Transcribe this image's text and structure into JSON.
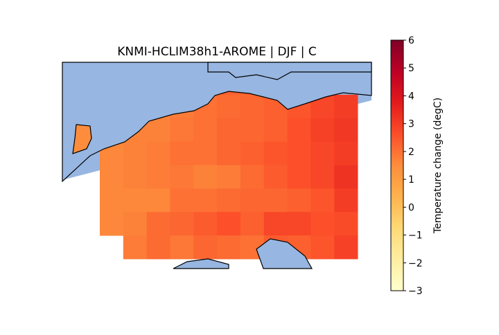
{
  "chart_data": {
    "type": "gridded-map",
    "title": "KNMI-HCLIM38h1-AROME | DJF | C",
    "colormap": "YlOrRd",
    "sea_color": "#97b6e1",
    "colorbar_label": "Temperature change (degC)",
    "clim": [
      -3,
      6
    ],
    "cticks": [
      {
        "value": -3,
        "label": "−3"
      },
      {
        "value": -2,
        "label": "−2"
      },
      {
        "value": -1,
        "label": "−1"
      },
      0,
      1,
      2,
      3,
      4,
      5,
      6
    ],
    "values": [
      [
        null,
        null,
        null,
        null,
        null,
        2.3,
        2.3,
        2.3,
        2.4,
        null,
        null
      ],
      [
        null,
        null,
        1.6,
        1.8,
        2.0,
        2.1,
        2.2,
        2.3,
        2.5,
        2.8,
        3.0
      ],
      [
        1.7,
        1.7,
        1.7,
        1.9,
        2.0,
        2.2,
        2.2,
        2.3,
        2.6,
        2.9,
        3.1
      ],
      [
        1.6,
        1.7,
        1.8,
        2.0,
        2.0,
        2.2,
        2.3,
        2.5,
        2.6,
        2.8,
        3.0
      ],
      [
        1.6,
        1.7,
        1.8,
        1.9,
        1.7,
        1.8,
        2.1,
        2.4,
        2.6,
        2.8,
        3.2
      ],
      [
        1.6,
        1.6,
        1.6,
        2.0,
        2.0,
        2.1,
        2.2,
        2.2,
        2.3,
        2.5,
        3.0
      ],
      [
        1.6,
        1.7,
        2.1,
        2.2,
        2.4,
        2.6,
        2.3,
        2.8,
        2.8,
        2.6,
        2.7
      ],
      [
        null,
        1.8,
        2.1,
        1.9,
        2.2,
        2.1,
        2.0,
        2.4,
        2.3,
        2.5,
        2.9
      ]
    ]
  }
}
